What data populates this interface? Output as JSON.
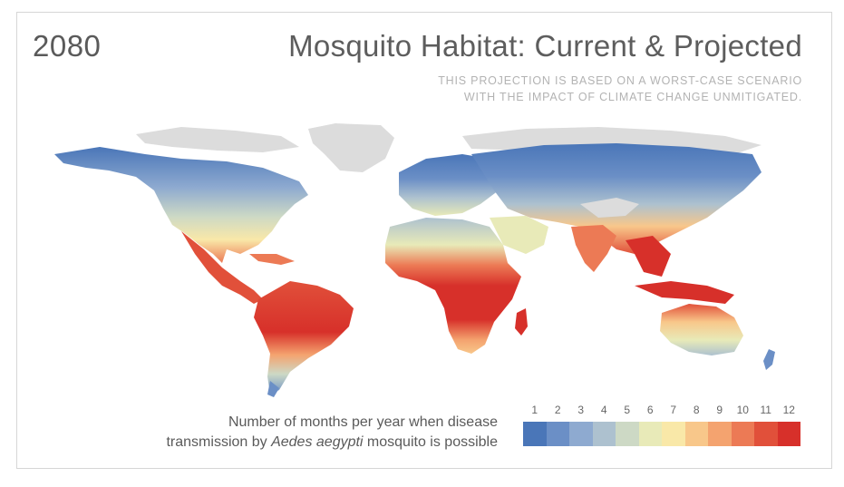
{
  "header": {
    "year": "2080",
    "title": "Mosquito Habitat: Current & Projected",
    "subtitle_line1": "THIS PROJECTION IS BASED ON A WORST-CASE SCENARIO",
    "subtitle_line2": "WITH THE IMPACT OF CLIMATE CHANGE UNMITIGATED."
  },
  "caption": {
    "line1": "Number of months per year when disease",
    "line2_prefix": "transmission by ",
    "line2_species": "Aedes aegypti",
    "line2_suffix": " mosquito is possible"
  },
  "legend": {
    "labels": [
      "1",
      "2",
      "3",
      "4",
      "5",
      "6",
      "7",
      "8",
      "9",
      "10",
      "11",
      "12"
    ],
    "colors": [
      "#4a76b8",
      "#6b8fc6",
      "#8eaad0",
      "#adc1cf",
      "#cdd9c5",
      "#e8eab8",
      "#f9e8a8",
      "#f8c78a",
      "#f4a36f",
      "#ec7a55",
      "#e1503a",
      "#d7302a"
    ]
  },
  "map_colors": {
    "no_data": "#dcdcdc",
    "ocean": "#ffffff"
  }
}
